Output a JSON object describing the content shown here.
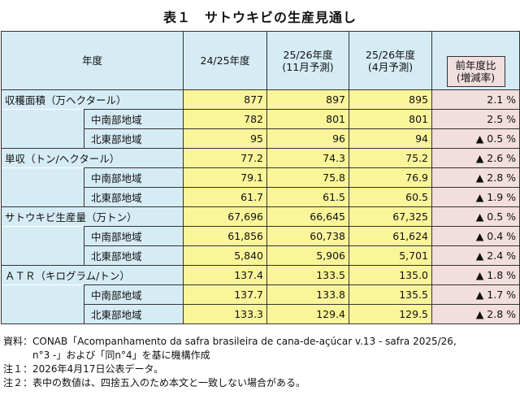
{
  "title": "表１　サトウキビの生産見通し",
  "header": {
    "year": "年度",
    "col1": "24/25年度",
    "col2_line1": "25/26年度",
    "col2_line2": "(11月予測)",
    "col3_line1": "25/26年度",
    "col3_line2": "(4月予測)",
    "col4_line1": "前年度比",
    "col4_line2": "(増減率)"
  },
  "rows": [
    {
      "label": "収穫面積（万ヘクタール）",
      "sub": "",
      "v1": "877",
      "v2": "897",
      "v3": "895",
      "chg": "2.1 %"
    },
    {
      "label": "",
      "sub": "中南部地域",
      "v1": "782",
      "v2": "801",
      "v3": "801",
      "chg": "2.5 %"
    },
    {
      "label": "",
      "sub": "北東部地域",
      "v1": "95",
      "v2": "96",
      "v3": "94",
      "chg": "▲ 0.5 %"
    },
    {
      "label": "単収（トン/ヘクタール）",
      "sub": "",
      "v1": "77.2",
      "v2": "74.3",
      "v3": "75.2",
      "chg": "▲ 2.6 %"
    },
    {
      "label": "",
      "sub": "中南部地域",
      "v1": "79.1",
      "v2": "75.8",
      "v3": "76.9",
      "chg": "▲ 2.8 %"
    },
    {
      "label": "",
      "sub": "北東部地域",
      "v1": "61.7",
      "v2": "61.5",
      "v3": "60.5",
      "chg": "▲ 1.9 %"
    },
    {
      "label": "サトウキビ生産量（万トン）",
      "sub": "",
      "v1": "67,696",
      "v2": "66,645",
      "v3": "67,325",
      "chg": "▲ 0.5 %"
    },
    {
      "label": "",
      "sub": "中南部地域",
      "v1": "61,856",
      "v2": "60,738",
      "v3": "61,624",
      "chg": "▲ 0.4 %"
    },
    {
      "label": "",
      "sub": "北東部地域",
      "v1": "5,840",
      "v2": "5,906",
      "v3": "5,701",
      "chg": "▲ 2.4 %"
    },
    {
      "label": "ＡＴＲ（キログラム/トン）",
      "sub": "",
      "v1": "137.4",
      "v2": "133.5",
      "v3": "135.0",
      "chg": "▲ 1.8 %"
    },
    {
      "label": "",
      "sub": "中南部地域",
      "v1": "137.7",
      "v2": "133.8",
      "v3": "135.5",
      "chg": "▲ 1.7 %"
    },
    {
      "label": "",
      "sub": "北東部地域",
      "v1": "133.3",
      "v2": "129.4",
      "v3": "129.5",
      "chg": "▲ 2.8 %"
    }
  ],
  "notes": {
    "source_line1": "資料：CONAB「Acompanhamento da safra brasileira de cana-de-açúcar v.13 - safra 2025/26,",
    "source_line2": "　　　n°3 -」および「同n°4」を基に機構作成",
    "note1": "注１：2026年4月17日公表データ。",
    "note2": "注２：表中の数値は、四捨五入のため本文と一致しない場合がある。"
  }
}
